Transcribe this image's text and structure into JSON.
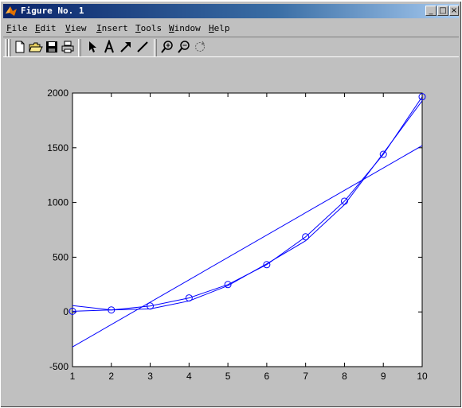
{
  "window": {
    "title": "Figure No. 1",
    "controls": [
      "_",
      "□",
      "×"
    ]
  },
  "menu": [
    {
      "key": "F",
      "rest": "ile"
    },
    {
      "key": "E",
      "rest": "dit"
    },
    {
      "key": "V",
      "rest": "iew"
    },
    {
      "key": "I",
      "rest": "nsert"
    },
    {
      "key": "T",
      "rest": "ools"
    },
    {
      "key": "W",
      "rest": "indow"
    },
    {
      "key": "H",
      "rest": "elp"
    }
  ],
  "toolbar": {
    "icons": [
      "new-file-icon",
      "open-folder-icon",
      "save-icon",
      "print-icon",
      "arrow-pointer-icon",
      "insert-text-icon",
      "insert-arrow-icon",
      "insert-line-icon",
      "zoom-in-icon",
      "zoom-out-icon",
      "rotate-icon"
    ]
  },
  "chart_data": {
    "type": "line",
    "xlim": [
      1,
      10
    ],
    "ylim": [
      -500,
      2000
    ],
    "xticks": [
      "1",
      "2",
      "3",
      "4",
      "5",
      "6",
      "7",
      "8",
      "9",
      "10"
    ],
    "yticks": [
      "-500",
      "0",
      "500",
      "1000",
      "1500",
      "2000"
    ],
    "grid": false,
    "color": "#0000ff",
    "series": [
      {
        "x": [
          1,
          2,
          3,
          4,
          5,
          6,
          7,
          8,
          9,
          10
        ],
        "y": [
          6,
          18,
          54,
          128,
          250,
          432,
          686,
          1012,
          1440,
          1966
        ],
        "marker": "circle"
      },
      {
        "x": [
          1,
          2,
          3,
          4,
          5,
          6,
          7,
          8,
          9,
          10
        ],
        "y": [
          58,
          18,
          28,
          100,
          240,
          440,
          650,
          980,
          1450,
          1930
        ],
        "marker": "none"
      },
      {
        "x": [
          1,
          10
        ],
        "y": [
          -320,
          1520
        ],
        "marker": "none"
      }
    ]
  }
}
